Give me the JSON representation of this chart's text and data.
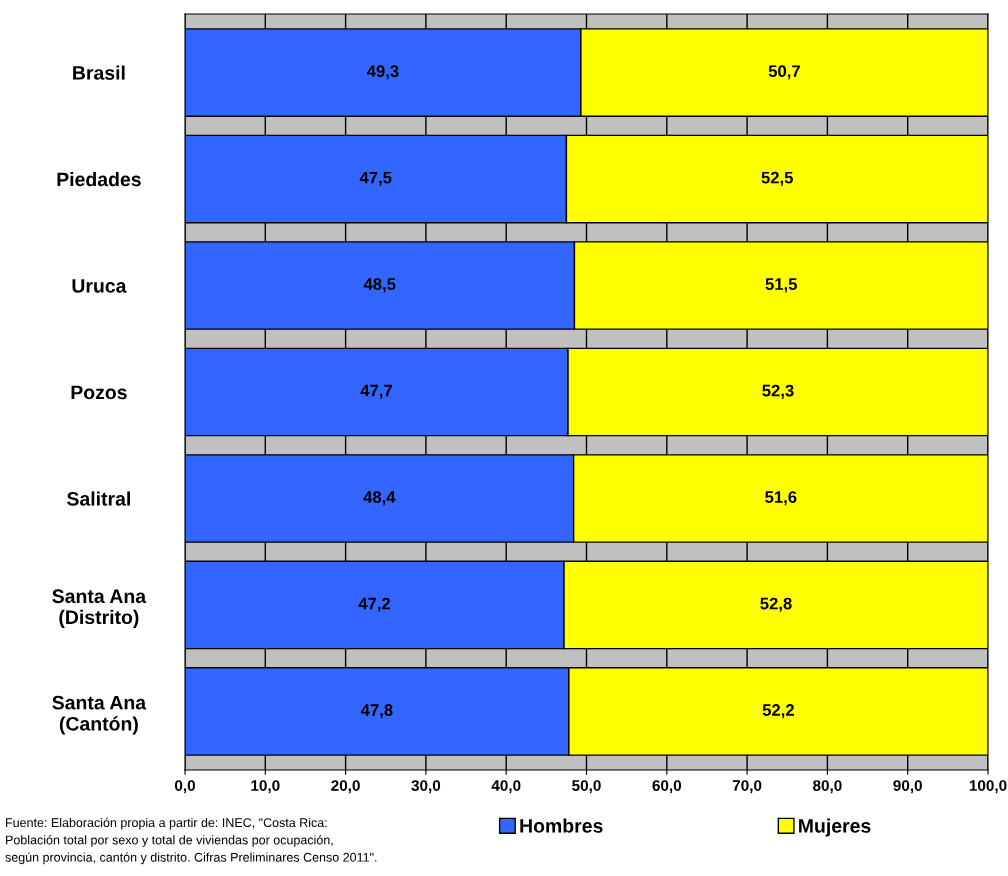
{
  "chart_data": {
    "type": "bar",
    "orientation": "horizontal",
    "stacked": true,
    "categories": [
      "Brasil",
      "Piedades",
      "Uruca",
      "Pozos",
      "Salitral",
      "Santa Ana\n(Distrito)",
      "Santa Ana\n(Cantón)"
    ],
    "series": [
      {
        "name": "Hombres",
        "color": "#3366ff",
        "values": [
          49.3,
          47.5,
          48.5,
          47.7,
          48.4,
          47.2,
          47.8
        ],
        "value_labels": [
          "49,3",
          "47,5",
          "48,5",
          "47,7",
          "48,4",
          "47,2",
          "47,8"
        ]
      },
      {
        "name": "Mujeres",
        "color": "#ffff00",
        "values": [
          50.7,
          52.5,
          51.5,
          52.3,
          51.6,
          52.8,
          52.2
        ],
        "value_labels": [
          "50,7",
          "52,5",
          "51,5",
          "52,3",
          "51,6",
          "52,8",
          "52,2"
        ]
      }
    ],
    "xlim": [
      0,
      100
    ],
    "xticks": [
      {
        "value": 0,
        "label": "0,0"
      },
      {
        "value": 10,
        "label": "10,0"
      },
      {
        "value": 20,
        "label": "20,0"
      },
      {
        "value": 30,
        "label": "30,0"
      },
      {
        "value": 40,
        "label": "40,0"
      },
      {
        "value": 50,
        "label": "50,0"
      },
      {
        "value": 60,
        "label": "60,0"
      },
      {
        "value": 70,
        "label": "70,0"
      },
      {
        "value": 80,
        "label": "80,0"
      },
      {
        "value": 90,
        "label": "90,0"
      },
      {
        "value": 100,
        "label": "100,0"
      }
    ],
    "grid": "x",
    "legend": "bottom",
    "annotations": [
      "Fuente: Elaboración propia a partir de: INEC, \"Costa Rica:\nPoblación total por sexo y total de viviendas por ocupación,\nsegún provincia, cantón y distrito. Cifras Preliminares Censo 2011\"."
    ]
  }
}
